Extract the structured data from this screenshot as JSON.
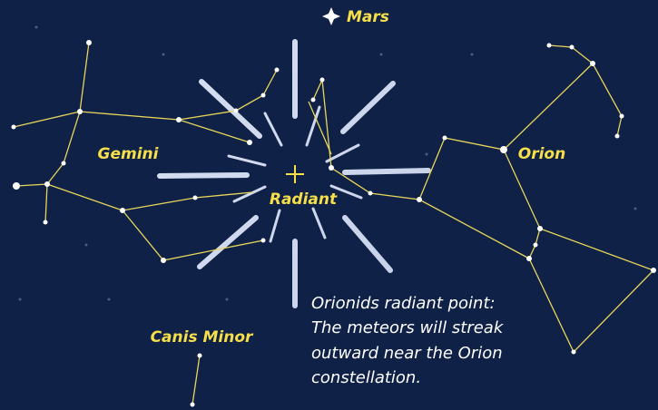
{
  "labels": {
    "mars": "Mars",
    "gemini": "Gemini",
    "radiant": "Radiant",
    "orion": "Orion",
    "canis_minor": "Canis Minor"
  },
  "annotation": {
    "lines": [
      "Orionids radiant point:",
      "The meteors will streak",
      "outward near the Orion",
      "constellation."
    ]
  }
}
